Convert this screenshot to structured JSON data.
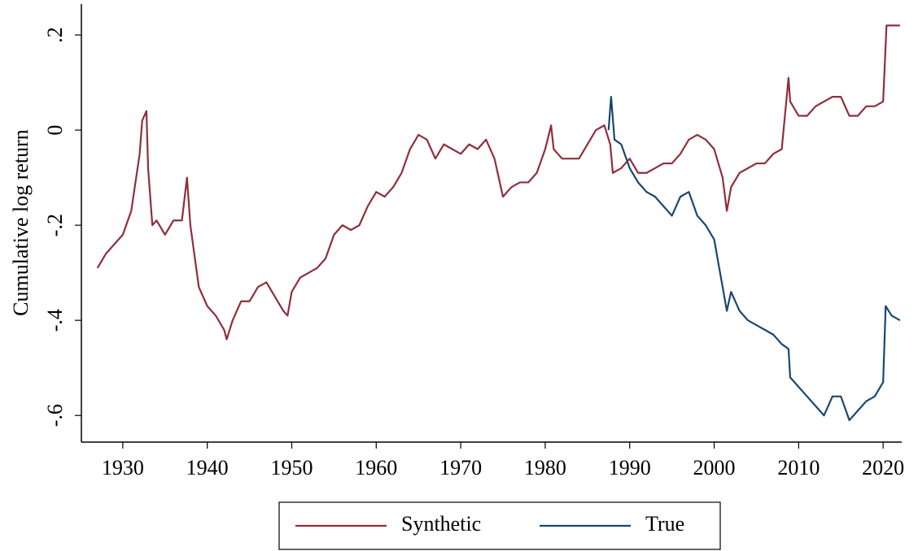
{
  "chart_data": {
    "type": "line",
    "y_label": "Cumulative log return",
    "xlim": [
      1925.1,
      2022.2
    ],
    "ylim": [
      -0.656,
      0.265
    ],
    "xticks": [
      1930,
      1940,
      1950,
      1960,
      1970,
      1980,
      1990,
      2000,
      2010,
      2020
    ],
    "yticks": [
      {
        "value": 0.2,
        "label": ".2"
      },
      0,
      {
        "value": -0.2,
        "label": "-.2"
      },
      {
        "value": -0.4,
        "label": "-.4"
      },
      {
        "value": -0.6,
        "label": "-.6"
      }
    ],
    "grid": false,
    "legend": "bottom",
    "series": [
      {
        "name": "Synthetic",
        "color": "#8f2f3c",
        "x": [
          1927,
          1928,
          1929,
          1930,
          1931,
          1932,
          1932.3,
          1932.8,
          1933,
          1933.5,
          1934,
          1935,
          1936,
          1937,
          1937.6,
          1938,
          1939,
          1940,
          1941,
          1942,
          1942.3,
          1943,
          1944,
          1945,
          1946,
          1947,
          1948,
          1949,
          1949.5,
          1950,
          1951,
          1952,
          1953,
          1954,
          1955,
          1956,
          1957,
          1958,
          1959,
          1960,
          1961,
          1962,
          1963,
          1964,
          1965,
          1966,
          1967,
          1968,
          1969,
          1970,
          1971,
          1972,
          1973,
          1974,
          1975,
          1976,
          1977,
          1978,
          1979,
          1980,
          1980.7,
          1981,
          1982,
          1983,
          1984,
          1985,
          1986,
          1987,
          1987.7,
          1988,
          1989,
          1990,
          1991,
          1992,
          1993,
          1994,
          1995,
          1996,
          1997,
          1998,
          1999,
          2000,
          2001,
          2001.5,
          2002,
          2003,
          2004,
          2005,
          2006,
          2007,
          2008,
          2008.8,
          2009,
          2010,
          2011,
          2012,
          2013,
          2014,
          2015,
          2016,
          2017,
          2018,
          2019,
          2020,
          2020.4,
          2021,
          2022
        ],
        "values": [
          -0.29,
          -0.26,
          -0.24,
          -0.22,
          -0.17,
          -0.05,
          0.02,
          0.04,
          -0.08,
          -0.2,
          -0.19,
          -0.22,
          -0.19,
          -0.19,
          -0.1,
          -0.2,
          -0.33,
          -0.37,
          -0.39,
          -0.42,
          -0.44,
          -0.4,
          -0.36,
          -0.36,
          -0.33,
          -0.32,
          -0.35,
          -0.38,
          -0.39,
          -0.34,
          -0.31,
          -0.3,
          -0.29,
          -0.27,
          -0.22,
          -0.2,
          -0.21,
          -0.2,
          -0.16,
          -0.13,
          -0.14,
          -0.12,
          -0.09,
          -0.04,
          -0.01,
          -0.02,
          -0.06,
          -0.03,
          -0.04,
          -0.05,
          -0.03,
          -0.04,
          -0.02,
          -0.06,
          -0.14,
          -0.12,
          -0.11,
          -0.11,
          -0.09,
          -0.04,
          0.01,
          -0.04,
          -0.06,
          -0.06,
          -0.06,
          -0.03,
          0.0,
          0.01,
          -0.03,
          -0.09,
          -0.08,
          -0.06,
          -0.09,
          -0.09,
          -0.08,
          -0.07,
          -0.07,
          -0.05,
          -0.02,
          -0.01,
          -0.02,
          -0.04,
          -0.1,
          -0.17,
          -0.12,
          -0.09,
          -0.08,
          -0.07,
          -0.07,
          -0.05,
          -0.04,
          0.11,
          0.06,
          0.03,
          0.03,
          0.05,
          0.06,
          0.07,
          0.07,
          0.03,
          0.03,
          0.05,
          0.05,
          0.06,
          0.22,
          0.22,
          0.22
        ]
      },
      {
        "name": "True",
        "color": "#1a476f",
        "x": [
          1987.5,
          1987.8,
          1988.2,
          1989,
          1990,
          1991,
          1992,
          1993,
          1994,
          1995,
          1996,
          1997,
          1998,
          1999,
          2000,
          2001,
          2001.5,
          2002,
          2003,
          2004,
          2005,
          2006,
          2007,
          2008,
          2008.8,
          2009,
          2010,
          2011,
          2012,
          2013,
          2014,
          2015,
          2016,
          2017,
          2018,
          2019,
          2020,
          2020.3,
          2021,
          2022
        ],
        "values": [
          0.0,
          0.07,
          -0.02,
          -0.03,
          -0.08,
          -0.11,
          -0.13,
          -0.14,
          -0.16,
          -0.18,
          -0.14,
          -0.13,
          -0.18,
          -0.2,
          -0.23,
          -0.33,
          -0.38,
          -0.34,
          -0.38,
          -0.4,
          -0.41,
          -0.42,
          -0.43,
          -0.45,
          -0.46,
          -0.52,
          -0.54,
          -0.56,
          -0.58,
          -0.6,
          -0.56,
          -0.56,
          -0.61,
          -0.59,
          -0.57,
          -0.56,
          -0.53,
          -0.37,
          -0.39,
          -0.4
        ]
      }
    ]
  }
}
